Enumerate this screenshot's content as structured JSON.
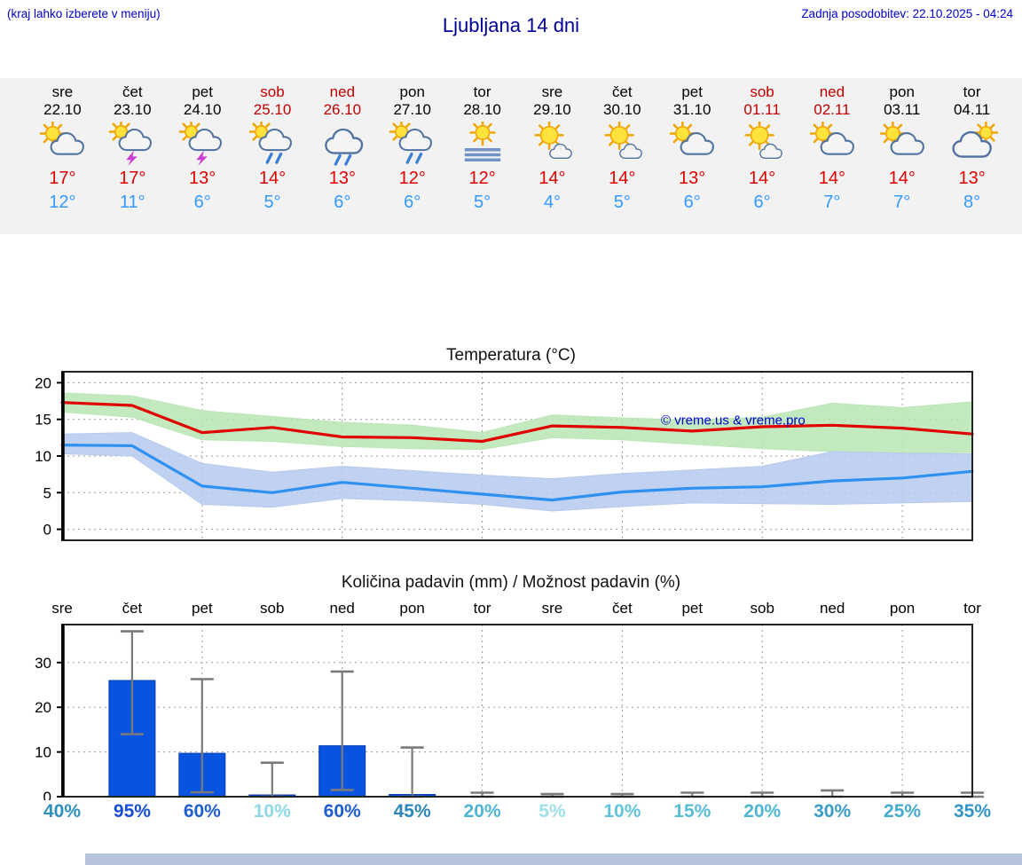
{
  "header": {
    "hint": "(kraj lahko izberete v meniju)",
    "title": "Ljubljana 14 dni",
    "updated": "Zadnja posodobitev: 22.10.2025 - 04:24"
  },
  "colors": {
    "high_temp": "#dd0000",
    "low_temp": "#3399ff",
    "weekend": "#c00000",
    "link_blue": "#0000cc",
    "strip_bg": "#f2f2f2"
  },
  "days": [
    {
      "name": "sre",
      "date": "22.10",
      "weekend": false,
      "icon": "partly-cloudy",
      "high": "17°",
      "low": "12°"
    },
    {
      "name": "čet",
      "date": "23.10",
      "weekend": false,
      "icon": "thunderstorm",
      "high": "17°",
      "low": "11°"
    },
    {
      "name": "pet",
      "date": "24.10",
      "weekend": false,
      "icon": "thunderstorm",
      "high": "13°",
      "low": "6°"
    },
    {
      "name": "sob",
      "date": "25.10",
      "weekend": true,
      "icon": "rain-showers",
      "high": "14°",
      "low": "5°"
    },
    {
      "name": "ned",
      "date": "26.10",
      "weekend": true,
      "icon": "rain",
      "high": "13°",
      "low": "6°"
    },
    {
      "name": "pon",
      "date": "27.10",
      "weekend": false,
      "icon": "rain-showers",
      "high": "12°",
      "low": "6°"
    },
    {
      "name": "tor",
      "date": "28.10",
      "weekend": false,
      "icon": "fog",
      "high": "12°",
      "low": "5°"
    },
    {
      "name": "sre",
      "date": "29.10",
      "weekend": false,
      "icon": "mostly-sunny",
      "high": "14°",
      "low": "4°"
    },
    {
      "name": "čet",
      "date": "30.10",
      "weekend": false,
      "icon": "mostly-sunny",
      "high": "14°",
      "low": "5°"
    },
    {
      "name": "pet",
      "date": "31.10",
      "weekend": false,
      "icon": "partly-cloudy",
      "high": "13°",
      "low": "6°"
    },
    {
      "name": "sob",
      "date": "01.11",
      "weekend": true,
      "icon": "mostly-sunny",
      "high": "14°",
      "low": "6°"
    },
    {
      "name": "ned",
      "date": "02.11",
      "weekend": true,
      "icon": "partly-cloudy",
      "high": "14°",
      "low": "7°"
    },
    {
      "name": "pon",
      "date": "03.11",
      "weekend": false,
      "icon": "partly-cloudy",
      "high": "14°",
      "low": "7°"
    },
    {
      "name": "tor",
      "date": "04.11",
      "weekend": false,
      "icon": "cloudy",
      "high": "13°",
      "low": "8°"
    }
  ],
  "chart_data": [
    {
      "type": "line",
      "title": "Temperatura (°C)",
      "x": [
        "22.10",
        "23.10",
        "24.10",
        "25.10",
        "26.10",
        "27.10",
        "28.10",
        "29.10",
        "30.10",
        "31.10",
        "01.11",
        "02.11",
        "03.11",
        "04.11"
      ],
      "ylim": [
        -1.5,
        21.5
      ],
      "yticks": [
        0,
        5,
        10,
        15,
        20
      ],
      "grid": true,
      "legend_position": "none",
      "watermark": "© vreme.us & vreme.pro",
      "series": [
        {
          "name": "max-temp-range",
          "kind": "band",
          "color": "#b9e6b4",
          "upper": [
            18.6,
            18.2,
            16.2,
            15.4,
            14.6,
            14.2,
            13.2,
            15.6,
            15.2,
            14.9,
            15.3,
            17.2,
            16.6,
            17.4
          ],
          "lower": [
            16.0,
            15.3,
            12.2,
            12.0,
            11.3,
            11.0,
            10.9,
            12.5,
            12.2,
            11.6,
            11.0,
            10.6,
            10.4,
            10.5
          ]
        },
        {
          "name": "min-temp-range",
          "kind": "band",
          "color": "#b6c9ee",
          "upper": [
            13.0,
            13.2,
            9.0,
            7.8,
            8.6,
            8.0,
            7.4,
            6.9,
            7.6,
            8.1,
            8.6,
            10.6,
            10.4,
            10.3
          ],
          "lower": [
            10.3,
            10.0,
            3.4,
            3.0,
            4.2,
            3.9,
            3.4,
            2.5,
            3.1,
            3.6,
            3.5,
            3.4,
            3.6,
            3.8
          ]
        },
        {
          "name": "max-temp",
          "kind": "line",
          "color": "#e10000",
          "values": [
            17.3,
            16.9,
            13.2,
            13.9,
            12.6,
            12.5,
            12.0,
            14.1,
            13.9,
            13.4,
            14.0,
            14.2,
            13.8,
            13.0
          ]
        },
        {
          "name": "min-temp",
          "kind": "line",
          "color": "#2e90f0",
          "values": [
            11.5,
            11.4,
            5.9,
            5.0,
            6.4,
            5.6,
            4.8,
            4.0,
            5.1,
            5.6,
            5.8,
            6.6,
            7.0,
            7.9
          ]
        }
      ]
    },
    {
      "type": "bar",
      "title": "Količina padavin (mm) / Možnost padavin (%)",
      "categories": [
        "sre",
        "čet",
        "pet",
        "sob",
        "ned",
        "pon",
        "tor",
        "sre",
        "čet",
        "pet",
        "sob",
        "ned",
        "pon",
        "tor"
      ],
      "values": [
        0,
        26,
        9.7,
        0.4,
        11.4,
        0.5,
        0,
        0,
        0,
        0,
        0,
        0,
        0,
        0
      ],
      "whisker_min": [
        0,
        14,
        1,
        0,
        1.5,
        0,
        0,
        0,
        0,
        0,
        0,
        0,
        0,
        0
      ],
      "whisker_max": [
        0,
        37,
        26.3,
        7.6,
        28,
        11,
        0.9,
        0.6,
        0.6,
        0.9,
        0.9,
        1.4,
        0.9,
        0.9
      ],
      "ylim": [
        0,
        38.5
      ],
      "yticks": [
        0,
        10,
        20,
        30
      ],
      "grid": true,
      "bar_color": "#0853e0",
      "whisker_color": "#7a7a7a",
      "probabilities": [
        {
          "label": "40%",
          "value": 40,
          "color": "#2e8fbe"
        },
        {
          "label": "95%",
          "value": 95,
          "color": "#1a4fd4"
        },
        {
          "label": "60%",
          "value": 60,
          "color": "#1f5ece"
        },
        {
          "label": "10%",
          "value": 10,
          "color": "#8fd9e6"
        },
        {
          "label": "60%",
          "value": 60,
          "color": "#1f5ece"
        },
        {
          "label": "45%",
          "value": 45,
          "color": "#2c86ba"
        },
        {
          "label": "20%",
          "value": 20,
          "color": "#4fb5d3"
        },
        {
          "label": "5%",
          "value": 5,
          "color": "#9fe0ea"
        },
        {
          "label": "10%",
          "value": 10,
          "color": "#63c3db"
        },
        {
          "label": "15%",
          "value": 15,
          "color": "#58bcd7"
        },
        {
          "label": "20%",
          "value": 20,
          "color": "#4fb5d3"
        },
        {
          "label": "30%",
          "value": 30,
          "color": "#3a9dc6"
        },
        {
          "label": "25%",
          "value": 25,
          "color": "#45aacd"
        },
        {
          "label": "35%",
          "value": 35,
          "color": "#3396c2"
        }
      ]
    }
  ]
}
